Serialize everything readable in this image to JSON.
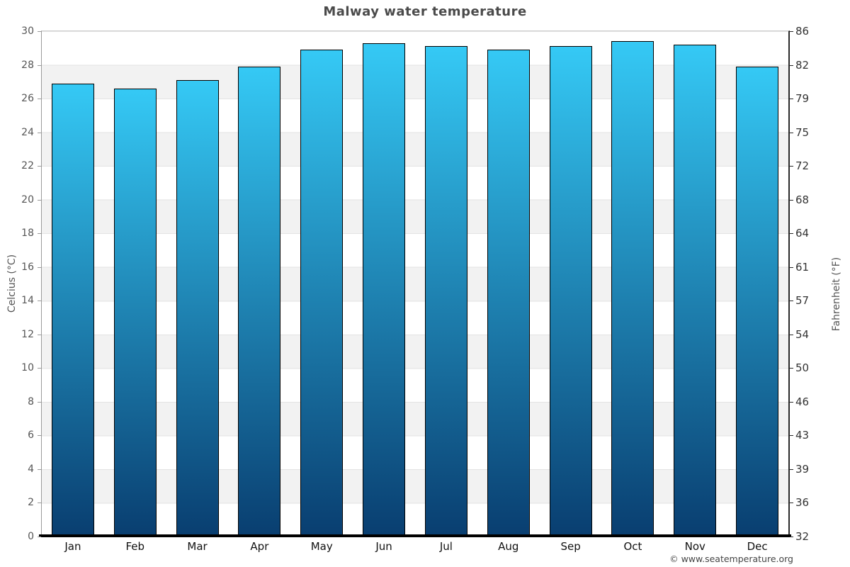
{
  "title": "Malway water temperature",
  "footer": "© www.seatemperature.org",
  "chart_data": {
    "type": "bar",
    "title": "Malway water temperature",
    "categories": [
      "Jan",
      "Feb",
      "Mar",
      "Apr",
      "May",
      "Jun",
      "Jul",
      "Aug",
      "Sep",
      "Oct",
      "Nov",
      "Dec"
    ],
    "values": [
      26.9,
      26.6,
      27.1,
      27.9,
      28.9,
      29.3,
      29.1,
      28.9,
      29.1,
      29.4,
      29.2,
      27.9
    ],
    "unit": "°C",
    "ylabel_left": "Celcius (°C)",
    "ylabel_right": "Fahrenheit (°F)",
    "ylim_celsius": [
      0,
      30
    ],
    "ylim_fahrenheit": [
      32,
      86
    ],
    "yticks_celsius": [
      30,
      28,
      26,
      24,
      22,
      20,
      18,
      16,
      14,
      12,
      10,
      8,
      6,
      4,
      2,
      0
    ],
    "yticks_fahrenheit": [
      86,
      82,
      79,
      75,
      72,
      68,
      64,
      61,
      57,
      54,
      50,
      46,
      43,
      39,
      36,
      32
    ],
    "grid": "alternating horizontal bands every 2°C, gray and white",
    "legend": "none",
    "colors": {
      "bar_gradient_top": "#35c9f5",
      "bar_gradient_bottom": "#093e70",
      "bar_border": "#000000",
      "band_gray": "#f2f2f2",
      "band_white": "#ffffff",
      "axis_bottom": "#000000",
      "title_text": "#4a4a4a",
      "tick_text_left": "#555555",
      "tick_text_right": "#333333",
      "month_text": "#111111"
    }
  }
}
